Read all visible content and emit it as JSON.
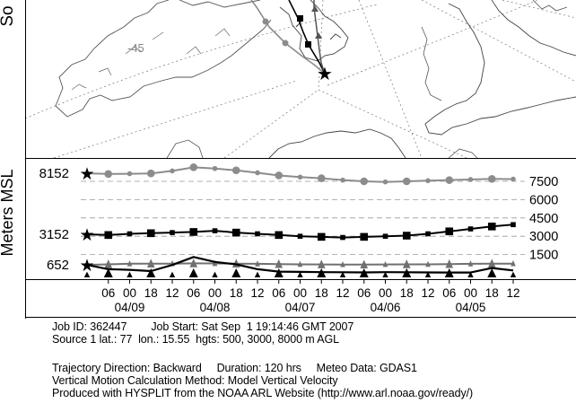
{
  "map": {
    "side_label": "So",
    "graticule_label": "-45"
  },
  "chart_data": {
    "type": "line",
    "ylabel": "Meters MSL",
    "grid": "horizontal dashed",
    "source_heights": [
      "8152",
      "3152",
      "652"
    ],
    "right_ticks": [
      {
        "label": "7500",
        "value": 7500
      },
      {
        "label": "6000",
        "value": 6000
      },
      {
        "label": "4500",
        "value": 4500
      },
      {
        "label": "3000",
        "value": 3000
      },
      {
        "label": "1500",
        "value": 1500
      }
    ],
    "ylim": [
      0,
      10000
    ],
    "hour_labels": [
      "06",
      "00",
      "18",
      "12",
      "06",
      "00",
      "18",
      "12",
      "06",
      "00",
      "18",
      "12",
      "06",
      "00",
      "18",
      "12",
      "06",
      "00",
      "18",
      "12"
    ],
    "date_labels": [
      {
        "label": "04/09",
        "at": 1
      },
      {
        "label": "04/08",
        "at": 5
      },
      {
        "label": "04/07",
        "at": 9
      },
      {
        "label": "04/06",
        "at": 13
      },
      {
        "label": "04/05",
        "at": 17
      }
    ],
    "series": [
      {
        "marker": "circle",
        "color": "#8c8c8c",
        "values": [
          8152,
          8100,
          8120,
          8150,
          8350,
          8650,
          8550,
          8400,
          8200,
          7980,
          7850,
          7750,
          7600,
          7500,
          7450,
          7500,
          7550,
          7600,
          7650,
          7700,
          7680
        ]
      },
      {
        "marker": "square",
        "color": "#000000",
        "values": [
          3152,
          3100,
          3200,
          3250,
          3300,
          3350,
          3450,
          3300,
          3200,
          3100,
          3000,
          2950,
          2900,
          2950,
          3000,
          3050,
          3200,
          3400,
          3600,
          3800,
          3950
        ]
      },
      {
        "marker": "triangle",
        "color": "#707070",
        "values": [
          652,
          700,
          750,
          760,
          760,
          780,
          770,
          760,
          740,
          720,
          700,
          690,
          680,
          680,
          690,
          700,
          700,
          720,
          740,
          760,
          760
        ]
      },
      {
        "marker": "none",
        "color": "#000000",
        "values": [
          652,
          300,
          250,
          150,
          650,
          1300,
          900,
          700,
          300,
          100,
          80,
          60,
          50,
          40,
          60,
          50,
          40,
          30,
          30,
          400,
          200
        ]
      }
    ]
  },
  "info": {
    "line1": "Job ID: 362447        Job Start: Sat Sep  1 19:14:46 GMT 2007",
    "line2": "Source 1 lat.: 77  lon.: 15.55  hgts: 500, 3000, 8000 m AGL",
    "line3": "Trajectory Direction: Backward     Duration: 120 hrs     Meteo Data: GDAS1",
    "line4": "Vertical Motion Calculation Method: Model Vertical Velocity",
    "line5": "Produced with HYSPLIT from the NOAA ARL Website (http://www.arl.noaa.gov/ready/)"
  }
}
